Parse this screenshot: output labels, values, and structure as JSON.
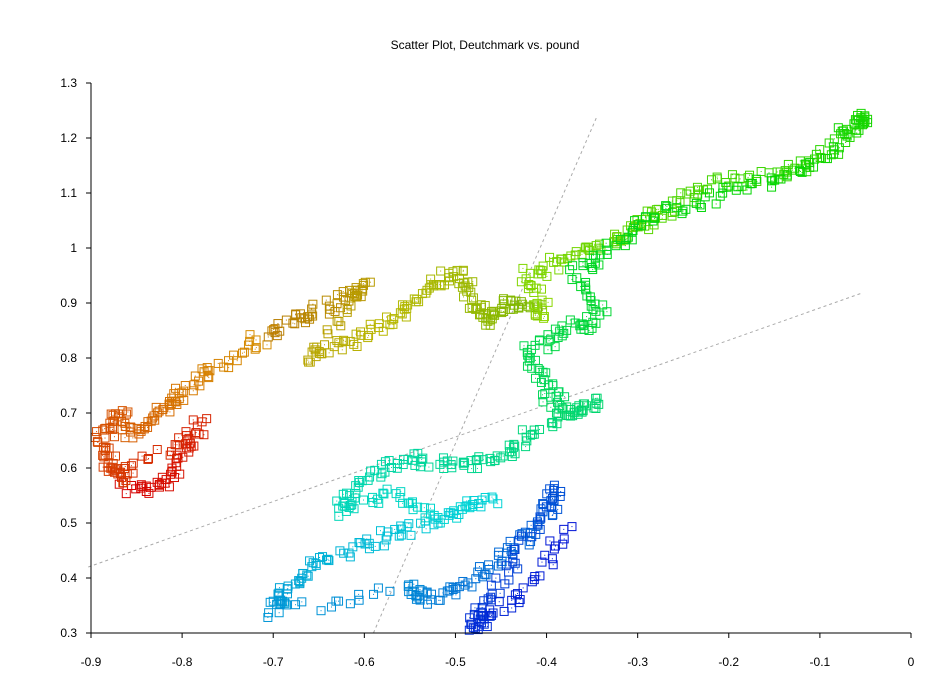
{
  "chart_data": {
    "type": "scatter",
    "title": "Scatter Plot, Deutchmark vs. pound",
    "xlabel": "",
    "ylabel": "",
    "xlim": [
      -0.9,
      0
    ],
    "ylim": [
      0.3,
      1.3
    ],
    "xticks": [
      "-0.9",
      "-0.8",
      "-0.7",
      "-0.6",
      "-0.5",
      "-0.4",
      "-0.3",
      "-0.2",
      "-0.1",
      "0"
    ],
    "yticks": [
      "0.3",
      "0.4",
      "0.5",
      "0.6",
      "0.7",
      "0.8",
      "0.9",
      "1",
      "1.1",
      "1.2",
      "1.3"
    ],
    "grid": false,
    "marker": "open-square",
    "color_scale": "hue by time order: red → orange → olive → green → teal → blue",
    "trajectory": [
      [
        -0.86,
        0.56
      ],
      [
        -0.82,
        0.57
      ],
      [
        -0.8,
        0.63
      ],
      [
        -0.78,
        0.68
      ],
      [
        -0.86,
        0.58
      ],
      [
        -0.88,
        0.6
      ],
      [
        -0.89,
        0.65
      ],
      [
        -0.87,
        0.7
      ],
      [
        -0.85,
        0.66
      ],
      [
        -0.82,
        0.71
      ],
      [
        -0.8,
        0.74
      ],
      [
        -0.76,
        0.79
      ],
      [
        -0.7,
        0.85
      ],
      [
        -0.66,
        0.88
      ],
      [
        -0.62,
        0.91
      ],
      [
        -0.6,
        0.93
      ],
      [
        -0.66,
        0.8
      ],
      [
        -0.62,
        0.83
      ],
      [
        -0.57,
        0.87
      ],
      [
        -0.53,
        0.92
      ],
      [
        -0.5,
        0.96
      ],
      [
        -0.48,
        0.9
      ],
      [
        -0.46,
        0.87
      ],
      [
        -0.44,
        0.9
      ],
      [
        -0.4,
        0.88
      ],
      [
        -0.42,
        0.95
      ],
      [
        -0.38,
        0.98
      ],
      [
        -0.33,
        1.01
      ],
      [
        -0.3,
        1.04
      ],
      [
        -0.27,
        1.07
      ],
      [
        -0.22,
        1.12
      ],
      [
        -0.15,
        1.13
      ],
      [
        -0.1,
        1.16
      ],
      [
        -0.06,
        1.22
      ],
      [
        -0.05,
        1.24
      ],
      [
        -0.12,
        1.14
      ],
      [
        -0.2,
        1.1
      ],
      [
        -0.28,
        1.06
      ],
      [
        -0.33,
        1.0
      ],
      [
        -0.37,
        0.95
      ],
      [
        -0.34,
        0.87
      ],
      [
        -0.38,
        0.85
      ],
      [
        -0.42,
        0.81
      ],
      [
        -0.4,
        0.74
      ],
      [
        -0.38,
        0.7
      ],
      [
        -0.34,
        0.72
      ],
      [
        -0.42,
        0.66
      ],
      [
        -0.45,
        0.62
      ],
      [
        -0.5,
        0.6
      ],
      [
        -0.55,
        0.62
      ],
      [
        -0.6,
        0.58
      ],
      [
        -0.63,
        0.52
      ],
      [
        -0.57,
        0.55
      ],
      [
        -0.52,
        0.51
      ],
      [
        -0.46,
        0.54
      ],
      [
        -0.55,
        0.49
      ],
      [
        -0.6,
        0.46
      ],
      [
        -0.66,
        0.42
      ],
      [
        -0.69,
        0.37
      ],
      [
        -0.7,
        0.34
      ],
      [
        -0.55,
        0.38
      ],
      [
        -0.53,
        0.36
      ],
      [
        -0.48,
        0.4
      ],
      [
        -0.44,
        0.45
      ],
      [
        -0.4,
        0.52
      ],
      [
        -0.39,
        0.56
      ],
      [
        -0.44,
        0.42
      ],
      [
        -0.47,
        0.34
      ],
      [
        -0.48,
        0.31
      ],
      [
        -0.42,
        0.38
      ],
      [
        -0.37,
        0.5
      ]
    ],
    "reference_lines": [
      {
        "style": "dashed",
        "color": "#aaaaaa",
        "from": [
          -0.903,
          0.42
        ],
        "to": [
          -0.054,
          0.918
        ]
      },
      {
        "style": "dashed",
        "color": "#aaaaaa",
        "from": [
          -0.59,
          0.3
        ],
        "to": [
          -0.345,
          1.238
        ]
      }
    ]
  }
}
